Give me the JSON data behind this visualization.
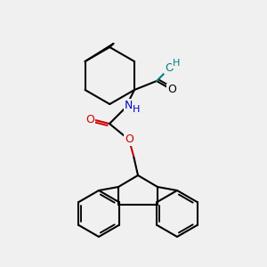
{
  "bg_color": "#f0f0f0",
  "bond_color": "#000000",
  "bond_width": 1.5,
  "atom_colors": {
    "O": "#cc0000",
    "N": "#0000cc",
    "H_on_N": "#0000cc",
    "O_teal": "#008080",
    "H_teal": "#008080"
  }
}
